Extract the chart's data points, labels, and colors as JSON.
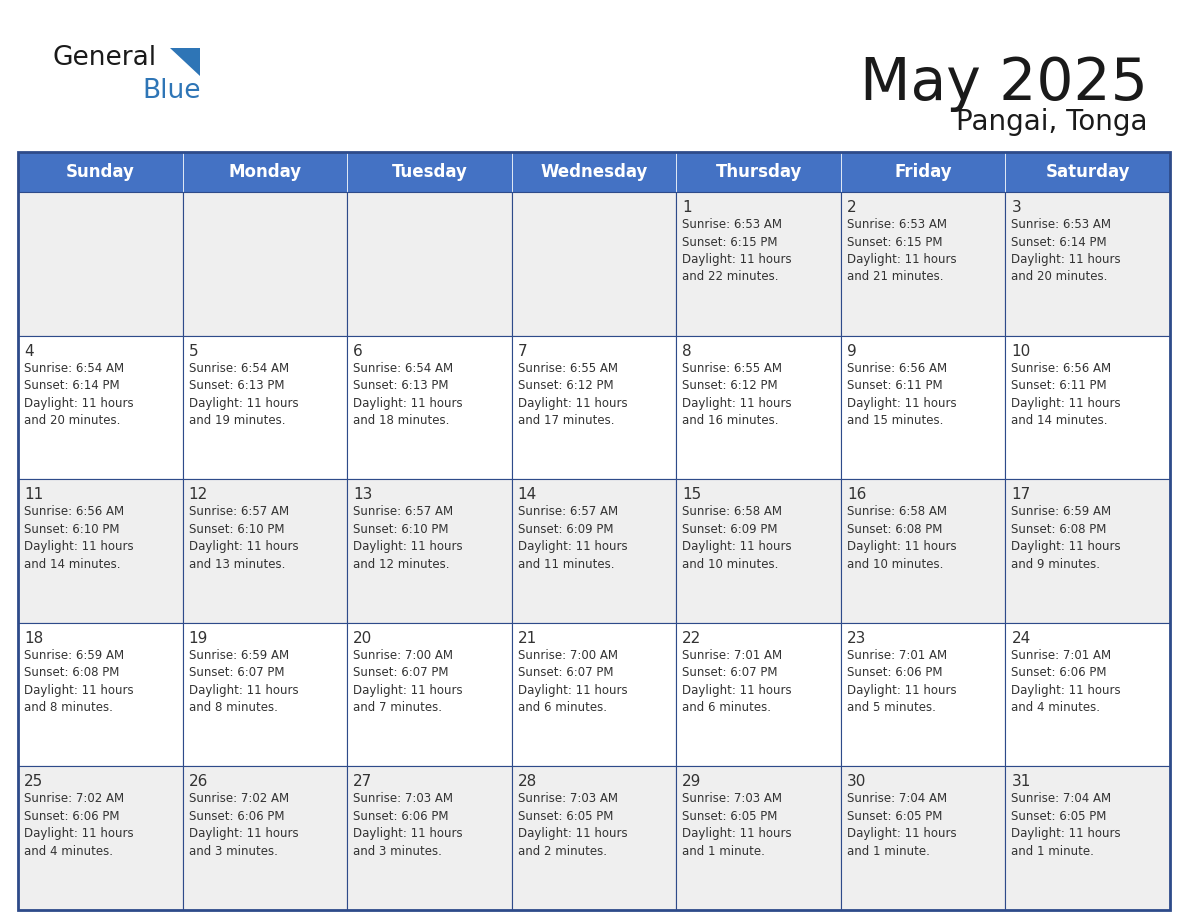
{
  "title": "May 2025",
  "subtitle": "Pangai, Tonga",
  "days_of_week": [
    "Sunday",
    "Monday",
    "Tuesday",
    "Wednesday",
    "Thursday",
    "Friday",
    "Saturday"
  ],
  "header_bg": "#4472C4",
  "header_text": "#FFFFFF",
  "cell_bg_odd": "#EFEFEF",
  "cell_bg_even": "#FFFFFF",
  "border_color_dark": "#2E4B8A",
  "border_color_light": "#C0C0C0",
  "day_num_color": "#333333",
  "info_color": "#333333",
  "title_color": "#1a1a1a",
  "subtitle_color": "#1a1a1a",
  "logo_black": "#1a1a1a",
  "logo_blue": "#2E75B6",
  "logo_triangle": "#2E75B6",
  "weeks": [
    [
      {
        "day": null,
        "info": ""
      },
      {
        "day": null,
        "info": ""
      },
      {
        "day": null,
        "info": ""
      },
      {
        "day": null,
        "info": ""
      },
      {
        "day": 1,
        "info": "Sunrise: 6:53 AM\nSunset: 6:15 PM\nDaylight: 11 hours\nand 22 minutes."
      },
      {
        "day": 2,
        "info": "Sunrise: 6:53 AM\nSunset: 6:15 PM\nDaylight: 11 hours\nand 21 minutes."
      },
      {
        "day": 3,
        "info": "Sunrise: 6:53 AM\nSunset: 6:14 PM\nDaylight: 11 hours\nand 20 minutes."
      }
    ],
    [
      {
        "day": 4,
        "info": "Sunrise: 6:54 AM\nSunset: 6:14 PM\nDaylight: 11 hours\nand 20 minutes."
      },
      {
        "day": 5,
        "info": "Sunrise: 6:54 AM\nSunset: 6:13 PM\nDaylight: 11 hours\nand 19 minutes."
      },
      {
        "day": 6,
        "info": "Sunrise: 6:54 AM\nSunset: 6:13 PM\nDaylight: 11 hours\nand 18 minutes."
      },
      {
        "day": 7,
        "info": "Sunrise: 6:55 AM\nSunset: 6:12 PM\nDaylight: 11 hours\nand 17 minutes."
      },
      {
        "day": 8,
        "info": "Sunrise: 6:55 AM\nSunset: 6:12 PM\nDaylight: 11 hours\nand 16 minutes."
      },
      {
        "day": 9,
        "info": "Sunrise: 6:56 AM\nSunset: 6:11 PM\nDaylight: 11 hours\nand 15 minutes."
      },
      {
        "day": 10,
        "info": "Sunrise: 6:56 AM\nSunset: 6:11 PM\nDaylight: 11 hours\nand 14 minutes."
      }
    ],
    [
      {
        "day": 11,
        "info": "Sunrise: 6:56 AM\nSunset: 6:10 PM\nDaylight: 11 hours\nand 14 minutes."
      },
      {
        "day": 12,
        "info": "Sunrise: 6:57 AM\nSunset: 6:10 PM\nDaylight: 11 hours\nand 13 minutes."
      },
      {
        "day": 13,
        "info": "Sunrise: 6:57 AM\nSunset: 6:10 PM\nDaylight: 11 hours\nand 12 minutes."
      },
      {
        "day": 14,
        "info": "Sunrise: 6:57 AM\nSunset: 6:09 PM\nDaylight: 11 hours\nand 11 minutes."
      },
      {
        "day": 15,
        "info": "Sunrise: 6:58 AM\nSunset: 6:09 PM\nDaylight: 11 hours\nand 10 minutes."
      },
      {
        "day": 16,
        "info": "Sunrise: 6:58 AM\nSunset: 6:08 PM\nDaylight: 11 hours\nand 10 minutes."
      },
      {
        "day": 17,
        "info": "Sunrise: 6:59 AM\nSunset: 6:08 PM\nDaylight: 11 hours\nand 9 minutes."
      }
    ],
    [
      {
        "day": 18,
        "info": "Sunrise: 6:59 AM\nSunset: 6:08 PM\nDaylight: 11 hours\nand 8 minutes."
      },
      {
        "day": 19,
        "info": "Sunrise: 6:59 AM\nSunset: 6:07 PM\nDaylight: 11 hours\nand 8 minutes."
      },
      {
        "day": 20,
        "info": "Sunrise: 7:00 AM\nSunset: 6:07 PM\nDaylight: 11 hours\nand 7 minutes."
      },
      {
        "day": 21,
        "info": "Sunrise: 7:00 AM\nSunset: 6:07 PM\nDaylight: 11 hours\nand 6 minutes."
      },
      {
        "day": 22,
        "info": "Sunrise: 7:01 AM\nSunset: 6:07 PM\nDaylight: 11 hours\nand 6 minutes."
      },
      {
        "day": 23,
        "info": "Sunrise: 7:01 AM\nSunset: 6:06 PM\nDaylight: 11 hours\nand 5 minutes."
      },
      {
        "day": 24,
        "info": "Sunrise: 7:01 AM\nSunset: 6:06 PM\nDaylight: 11 hours\nand 4 minutes."
      }
    ],
    [
      {
        "day": 25,
        "info": "Sunrise: 7:02 AM\nSunset: 6:06 PM\nDaylight: 11 hours\nand 4 minutes."
      },
      {
        "day": 26,
        "info": "Sunrise: 7:02 AM\nSunset: 6:06 PM\nDaylight: 11 hours\nand 3 minutes."
      },
      {
        "day": 27,
        "info": "Sunrise: 7:03 AM\nSunset: 6:06 PM\nDaylight: 11 hours\nand 3 minutes."
      },
      {
        "day": 28,
        "info": "Sunrise: 7:03 AM\nSunset: 6:05 PM\nDaylight: 11 hours\nand 2 minutes."
      },
      {
        "day": 29,
        "info": "Sunrise: 7:03 AM\nSunset: 6:05 PM\nDaylight: 11 hours\nand 1 minute."
      },
      {
        "day": 30,
        "info": "Sunrise: 7:04 AM\nSunset: 6:05 PM\nDaylight: 11 hours\nand 1 minute."
      },
      {
        "day": 31,
        "info": "Sunrise: 7:04 AM\nSunset: 6:05 PM\nDaylight: 11 hours\nand 1 minute."
      }
    ]
  ]
}
